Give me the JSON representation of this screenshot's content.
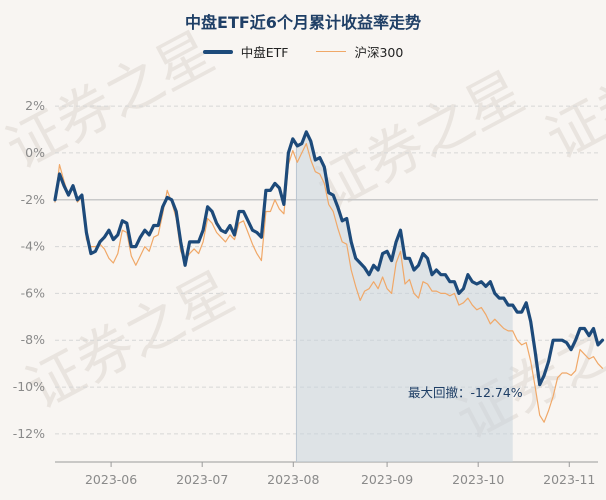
{
  "chart_data": {
    "type": "line",
    "title": "中盘ETF近6个月累计收益率走势",
    "yticks": [
      "2%",
      "0%",
      "-2%",
      "-4%",
      "-6%",
      "-8%",
      "-10%",
      "-12%"
    ],
    "ytick_values": [
      2,
      0,
      -2,
      -4,
      -6,
      -8,
      -10,
      -12
    ],
    "ylim": [
      -13.2,
      3.2
    ],
    "xticks": [
      "2023-06",
      "2023-07",
      "2023-08",
      "2023-09",
      "2023-10",
      "2023-11"
    ],
    "xtick_positions": [
      12.5,
      32.8,
      53.1,
      74.0,
      94.3,
      114.6
    ],
    "xlim": [
      0,
      121
    ],
    "annotation": "最大回撤：-12.74%",
    "drawdown_span": [
      53.8,
      102.0
    ],
    "series": [
      {
        "name": "中盘ETF",
        "color": "#1d4a7a",
        "values": [
          -2.0,
          -0.9,
          -1.4,
          -1.8,
          -1.4,
          -2.0,
          -1.8,
          -3.4,
          -4.3,
          -4.2,
          -3.8,
          -3.6,
          -3.3,
          -3.7,
          -3.5,
          -2.9,
          -3.0,
          -4.0,
          -4.0,
          -3.6,
          -3.3,
          -3.5,
          -3.1,
          -3.1,
          -2.3,
          -1.9,
          -2.0,
          -2.5,
          -3.8,
          -4.8,
          -3.8,
          -3.8,
          -3.8,
          -3.3,
          -2.3,
          -2.5,
          -3.0,
          -3.3,
          -3.4,
          -3.1,
          -3.5,
          -2.5,
          -2.5,
          -2.9,
          -3.3,
          -3.4,
          -3.6,
          -1.6,
          -1.6,
          -1.3,
          -1.5,
          -2.2,
          0.0,
          0.6,
          0.3,
          0.4,
          0.9,
          0.5,
          -0.3,
          -0.2,
          -0.6,
          -1.7,
          -1.8,
          -2.3,
          -2.9,
          -2.8,
          -3.8,
          -4.5,
          -4.7,
          -4.9,
          -5.2,
          -4.8,
          -5.0,
          -4.3,
          -4.2,
          -4.6,
          -3.8,
          -3.3,
          -4.5,
          -4.5,
          -5.0,
          -4.8,
          -4.3,
          -4.5,
          -5.2,
          -5.0,
          -5.2,
          -5.2,
          -5.5,
          -5.5,
          -6.0,
          -5.8,
          -5.2,
          -5.5,
          -5.6,
          -5.5,
          -5.7,
          -5.5,
          -6.0,
          -6.2,
          -6.2,
          -6.5,
          -6.5,
          -6.8,
          -6.8,
          -6.4,
          -7.2,
          -8.5,
          -9.9,
          -9.5,
          -8.9,
          -8.0,
          -8.0,
          -8.0,
          -8.1,
          -8.4,
          -8.0,
          -7.5,
          -7.5,
          -7.8,
          -7.5,
          -8.2,
          -8.0
        ]
      },
      {
        "name": "沪深300",
        "color": "#f0a868",
        "values": [
          -2.1,
          -0.5,
          -1.2,
          -1.8,
          -1.5,
          -2.1,
          -1.9,
          -3.7,
          -4.0,
          -4.0,
          -3.9,
          -4.1,
          -4.5,
          -4.7,
          -4.3,
          -3.3,
          -3.4,
          -4.4,
          -4.8,
          -4.4,
          -4.0,
          -4.2,
          -3.6,
          -3.5,
          -2.6,
          -1.6,
          -2.1,
          -2.8,
          -4.2,
          -4.6,
          -4.3,
          -4.1,
          -4.3,
          -3.8,
          -2.8,
          -3.0,
          -3.4,
          -3.6,
          -3.8,
          -3.5,
          -3.7,
          -3.0,
          -2.9,
          -3.4,
          -3.9,
          -4.3,
          -4.6,
          -2.5,
          -2.5,
          -2.0,
          -2.4,
          -2.6,
          -0.5,
          0.1,
          -0.4,
          0.0,
          0.4,
          -0.3,
          -0.8,
          -0.9,
          -1.3,
          -2.2,
          -2.5,
          -3.2,
          -3.8,
          -3.9,
          -5.0,
          -5.7,
          -6.3,
          -5.9,
          -5.8,
          -5.5,
          -5.8,
          -5.3,
          -5.8,
          -6.0,
          -4.7,
          -4.2,
          -5.6,
          -5.4,
          -6.0,
          -6.2,
          -5.5,
          -5.6,
          -5.9,
          -5.9,
          -6.0,
          -6.0,
          -6.1,
          -6.0,
          -6.5,
          -6.4,
          -6.2,
          -6.5,
          -6.7,
          -6.6,
          -6.9,
          -7.3,
          -7.1,
          -7.3,
          -7.5,
          -7.6,
          -7.6,
          -8.0,
          -8.2,
          -8.1,
          -8.9,
          -10.0,
          -11.2,
          -11.5,
          -11.0,
          -10.4,
          -9.6,
          -9.4,
          -9.4,
          -9.5,
          -9.3,
          -8.4,
          -8.6,
          -8.8,
          -8.7,
          -9.0,
          -9.2
        ]
      }
    ]
  },
  "watermark": {
    "text": "证券之星",
    "color": "#e9e4df"
  }
}
